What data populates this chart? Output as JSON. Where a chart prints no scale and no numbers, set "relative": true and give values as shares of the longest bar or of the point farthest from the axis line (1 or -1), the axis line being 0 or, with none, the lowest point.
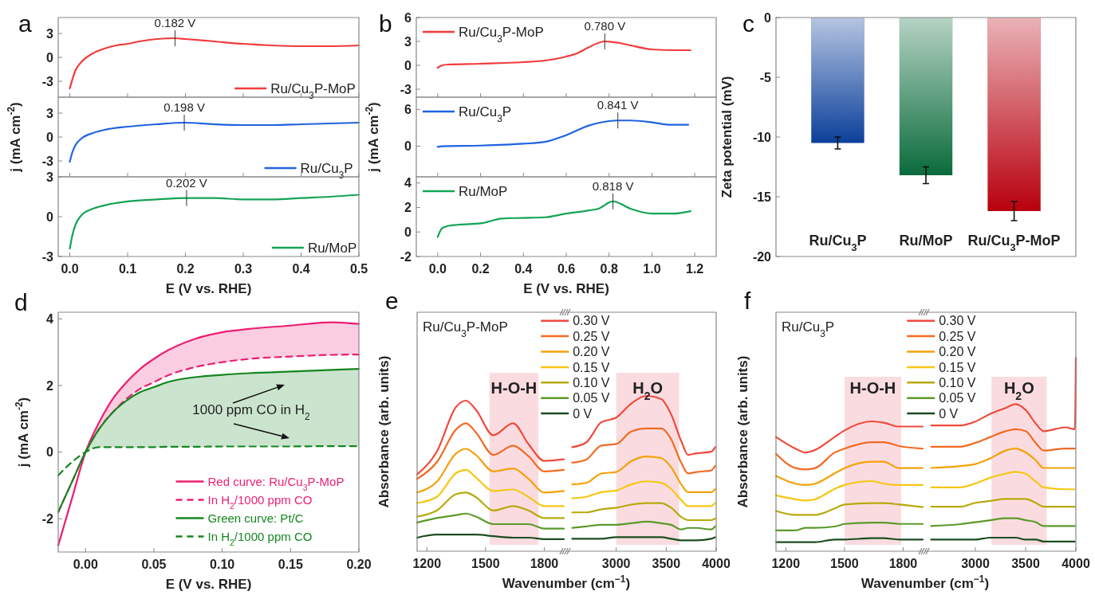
{
  "chart_data": [
    {
      "type": "line",
      "title": "a",
      "xlim": [
        -0.02,
        0.5
      ],
      "xticks": [
        0,
        0.1,
        0.2,
        0.3,
        0.4,
        0.5
      ],
      "ylim": [
        -5,
        5
      ],
      "yticks": [
        -3,
        0,
        3
      ],
      "tick_labels": "y",
      "legend": "bottom right",
      "annotations": [
        {
          "text": "0.182 V",
          "x": 0.182,
          "y": 2.4
        }
      ],
      "x": [
        0,
        0.01,
        0.02,
        0.04,
        0.06,
        0.08,
        0.1,
        0.12,
        0.15,
        0.182,
        0.2,
        0.25,
        0.3,
        0.35,
        0.4,
        0.45,
        0.5
      ],
      "series": [
        {
          "name": "Ru/Cu$_{3}$P-MoP",
          "color": "#f23b3b",
          "values": [
            -3.9,
            -1.6,
            -0.6,
            0.5,
            1.1,
            1.5,
            1.7,
            2.0,
            2.3,
            2.4,
            2.3,
            2.0,
            1.7,
            1.5,
            1.4,
            1.4,
            1.5
          ]
        }
      ]
    },
    {
      "type": "line",
      "ylabel": "j (mA cm$^{-2}$)",
      "xlim": [
        -0.02,
        0.5
      ],
      "xticks": [
        0,
        0.1,
        0.2,
        0.3,
        0.4,
        0.5
      ],
      "ylim": [
        -5,
        5
      ],
      "yticks": [
        -3,
        0,
        3
      ],
      "tick_labels": "y",
      "legend": "bottom right",
      "annotations": [
        {
          "text": "0.198 V",
          "x": 0.198,
          "y": 1.8
        }
      ],
      "x": [
        0,
        0.005,
        0.01,
        0.02,
        0.04,
        0.06,
        0.1,
        0.15,
        0.198,
        0.25,
        0.3,
        0.35,
        0.4,
        0.45,
        0.5
      ],
      "series": [
        {
          "name": "Ru/Cu$_{3}$P",
          "color": "#1f63e0",
          "values": [
            -3.1,
            -1.8,
            -1.0,
            -0.2,
            0.5,
            0.9,
            1.3,
            1.6,
            1.8,
            1.6,
            1.5,
            1.5,
            1.6,
            1.7,
            1.8
          ]
        }
      ]
    },
    {
      "type": "line",
      "xlabel": "E (V vs. RHE)",
      "xlim": [
        -0.02,
        0.5
      ],
      "xticks": [
        {
          "value": 0,
          "label": "0.0"
        },
        0.1,
        0.2,
        0.3,
        0.4,
        0.5
      ],
      "ylim": [
        -3,
        3
      ],
      "yticks": [
        -3,
        0,
        3
      ],
      "legend": "bottom right",
      "annotations": [
        {
          "text": "0.202 V",
          "x": 0.202,
          "y": 1.4
        }
      ],
      "x": [
        0,
        0.005,
        0.01,
        0.02,
        0.04,
        0.06,
        0.1,
        0.15,
        0.202,
        0.25,
        0.3,
        0.35,
        0.4,
        0.45,
        0.5
      ],
      "series": [
        {
          "name": "Ru/MoP",
          "color": "#13a454",
          "values": [
            -2.4,
            -1.3,
            -0.6,
            0.1,
            0.6,
            0.85,
            1.15,
            1.3,
            1.4,
            1.4,
            1.3,
            1.3,
            1.4,
            1.5,
            1.65
          ]
        }
      ]
    },
    {
      "type": "line",
      "title": "b",
      "xlim": [
        -0.1,
        1.3
      ],
      "xticks": [
        0,
        0.2,
        0.4,
        0.6,
        0.8,
        1,
        1.2
      ],
      "ylim": [
        -4,
        6
      ],
      "yticks": [
        -3,
        0,
        3,
        6
      ],
      "tick_labels": "y",
      "legend": "top left",
      "annotations": [
        {
          "text": "0.780 V",
          "x": 0.78,
          "y": 3.0
        }
      ],
      "x": [
        0,
        0.02,
        0.05,
        0.2,
        0.4,
        0.5,
        0.6,
        0.65,
        0.7,
        0.78,
        0.85,
        0.9,
        1.0,
        1.1,
        1.18
      ],
      "series": [
        {
          "name": "Ru/Cu$_{3}$P-MoP",
          "color": "#f23b3b",
          "values": [
            -0.3,
            0,
            0.1,
            0.2,
            0.4,
            0.6,
            1.1,
            1.5,
            2.2,
            3.0,
            2.8,
            2.5,
            2.0,
            1.9,
            1.9
          ]
        }
      ]
    },
    {
      "type": "line",
      "ylabel": "j (mA cm$^{-2}$)",
      "xlim": [
        -0.1,
        1.3
      ],
      "xticks": [
        0,
        0.2,
        0.4,
        0.6,
        0.8,
        1,
        1.2
      ],
      "ylim": [
        -5,
        8
      ],
      "yticks": [
        0,
        6
      ],
      "tick_labels": "y",
      "legend": "top left",
      "annotations": [
        {
          "text": "0.841 V",
          "x": 0.841,
          "y": 4.2
        }
      ],
      "x": [
        0,
        0.02,
        0.2,
        0.4,
        0.5,
        0.6,
        0.7,
        0.8,
        0.841,
        0.9,
        1.0,
        1.08,
        1.17
      ],
      "series": [
        {
          "name": "Ru/Cu$_{3}$P",
          "color": "#1f63e0",
          "values": [
            -0.1,
            0.0,
            0.1,
            0.4,
            0.7,
            1.8,
            3.3,
            4.1,
            4.2,
            4.2,
            3.9,
            3.5,
            3.5
          ]
        }
      ]
    },
    {
      "type": "line",
      "xlabel": "E (V vs. RHE)",
      "xlim": [
        -0.1,
        1.3
      ],
      "xticks": [
        {
          "value": 0,
          "label": "0.0"
        },
        0.2,
        0.4,
        0.6,
        0.8,
        {
          "value": 1,
          "label": "1.0"
        },
        1.2
      ],
      "ylim": [
        -2,
        4.5
      ],
      "yticks": [
        -2,
        0,
        2,
        4
      ],
      "legend": "top left",
      "annotations": [
        {
          "text": "0.818 V",
          "x": 0.818,
          "y": 2.5
        }
      ],
      "x": [
        0,
        0.02,
        0.05,
        0.1,
        0.2,
        0.3,
        0.4,
        0.5,
        0.6,
        0.7,
        0.75,
        0.818,
        0.9,
        1.0,
        1.1,
        1.18
      ],
      "series": [
        {
          "name": "Ru/MoP",
          "color": "#13a454",
          "values": [
            -0.4,
            0.3,
            0.5,
            0.6,
            0.7,
            1.1,
            1.15,
            1.2,
            1.5,
            1.75,
            1.9,
            2.5,
            1.9,
            1.5,
            1.5,
            1.7
          ]
        }
      ]
    },
    {
      "type": "bar",
      "title": "c",
      "ylabel": "Zeta potential (mV)",
      "categories": [
        "Ru/Cu$_{3}$P",
        "Ru/MoP",
        "Ru/Cu$_{3}$P-MoP"
      ],
      "values": [
        -10.5,
        -13.2,
        -16.2
      ],
      "errors": [
        0.5,
        0.7,
        0.8
      ],
      "colors": [
        "#0b3f9a",
        "#0a6b3b",
        "#b8000e"
      ],
      "ylim": [
        -20,
        0
      ],
      "yticks": [
        -20,
        -15,
        -10,
        -5,
        0
      ]
    },
    {
      "type": "line",
      "title": "d",
      "xlabel": "E (V vs. RHE)",
      "ylabel": "j (mA cm$^{-2}$)",
      "xlim": [
        -0.02,
        0.2
      ],
      "xticks": [
        {
          "value": 0,
          "label": "0.00"
        },
        0.05,
        {
          "value": 0.1,
          "label": "0.10"
        },
        0.15,
        {
          "value": 0.2,
          "label": "0.20"
        }
      ],
      "ylim": [
        -3,
        4.2
      ],
      "yticks": [
        -2,
        0,
        2,
        4
      ],
      "legend": "bottom right",
      "annotations": [
        "1000 ppm CO in H$_{2}$"
      ],
      "x": [
        -0.02,
        -0.01,
        0,
        0.01,
        0.02,
        0.03,
        0.04,
        0.05,
        0.06,
        0.08,
        0.1,
        0.12,
        0.15,
        0.18,
        0.2
      ],
      "series": [
        {
          "name": "Red curve: Ru/Cu$_{3}$P-MoP",
          "color": "#ee1d73",
          "values": [
            -2.8,
            -1.4,
            0,
            0.9,
            1.6,
            2.1,
            2.5,
            2.8,
            3.05,
            3.4,
            3.6,
            3.7,
            3.8,
            3.9,
            3.85
          ],
          "lower": [
            null,
            null,
            0,
            0.7,
            1.2,
            1.6,
            1.9,
            2.1,
            2.3,
            2.55,
            2.7,
            2.8,
            2.87,
            2.92,
            2.93
          ],
          "upper": [
            null,
            null,
            0,
            0.9,
            1.6,
            2.1,
            2.5,
            2.8,
            3.05,
            3.4,
            3.6,
            3.7,
            3.8,
            3.9,
            3.85
          ]
        },
        {
          "name": "In H$_{2}$/1000 ppm CO",
          "color": "#ee1d73",
          "line_style": "dashed",
          "values": [
            -1.8,
            -0.9,
            0,
            0.7,
            1.2,
            1.6,
            1.9,
            2.1,
            2.3,
            2.55,
            2.7,
            2.8,
            2.87,
            2.92,
            2.93
          ]
        },
        {
          "name": "Green curve: Pt/C",
          "color": "#14861f",
          "values": [
            -1.8,
            -0.9,
            0,
            0.7,
            1.2,
            1.55,
            1.8,
            1.95,
            2.1,
            2.25,
            2.32,
            2.37,
            2.42,
            2.47,
            2.5
          ],
          "lower": [
            null,
            null,
            0,
            0.15,
            0.15,
            0.15,
            0.15,
            0.15,
            0.16,
            0.16,
            0.17,
            0.17,
            0.17,
            0.18,
            0.18
          ],
          "upper": [
            null,
            null,
            0,
            0.7,
            1.2,
            1.55,
            1.8,
            1.95,
            2.1,
            2.25,
            2.32,
            2.37,
            2.42,
            2.47,
            2.5
          ]
        },
        {
          "name": "In H$_{2}$/1000 ppm CO",
          "color": "#14861f",
          "line_style": "dashed",
          "values": [
            -0.7,
            -0.3,
            0,
            0.15,
            0.15,
            0.15,
            0.15,
            0.15,
            0.16,
            0.16,
            0.17,
            0.17,
            0.17,
            0.18,
            0.18
          ]
        }
      ]
    },
    {
      "type": "line",
      "title": "e",
      "relative": true,
      "xlabel": "Wavenumber (cm$^{−1}$)",
      "ylabel": "Absorbance (arb. units)",
      "xlim": [
        1150,
        1900
      ],
      "xticks": [
        1200,
        1500,
        1800
      ],
      "legend": "top right",
      "annotations": [
        "Ru/Cu$_{3}$P-MoP"
      ],
      "bands": [
        {
          "axis": "x",
          "from": 1520,
          "to": 1770,
          "label": "H-O-H",
          "color": "#f9d3d8"
        }
      ],
      "x": [
        1150,
        1250,
        1350,
        1400,
        1450,
        1540,
        1640,
        1720,
        1800,
        1900
      ],
      "series": [
        {
          "name": "0.30 V",
          "color": "#f04a3c",
          "values": [
            0.51,
            0.66,
            0.96,
            1.0,
            0.94,
            0.77,
            0.85,
            0.71,
            0.6,
            0.61
          ]
        },
        {
          "name": "0.25 V",
          "color": "#f26a22",
          "values": [
            0.48,
            0.59,
            0.81,
            0.85,
            0.79,
            0.64,
            0.7,
            0.63,
            0.53,
            0.54
          ]
        },
        {
          "name": "0.20 V",
          "color": "#f5a10a",
          "values": [
            0.39,
            0.46,
            0.65,
            0.68,
            0.64,
            0.53,
            0.55,
            0.48,
            0.39,
            0.4
          ]
        },
        {
          "name": "0.15 V",
          "color": "#f7c614",
          "values": [
            0.32,
            0.36,
            0.52,
            0.54,
            0.49,
            0.4,
            0.41,
            0.36,
            0.3,
            0.3
          ]
        },
        {
          "name": "0.10 V",
          "color": "#b8a90e",
          "values": [
            0.23,
            0.27,
            0.38,
            0.39,
            0.36,
            0.27,
            0.3,
            0.27,
            0.22,
            0.22
          ]
        },
        {
          "name": "0.05 V",
          "color": "#5c9a2a",
          "values": [
            0.19,
            0.22,
            0.24,
            0.25,
            0.23,
            0.18,
            0.18,
            0.18,
            0.15,
            0.15
          ]
        },
        {
          "name": "0 V",
          "color": "#1c4d22",
          "values": [
            0.09,
            0.11,
            0.11,
            0.11,
            0.11,
            0.1,
            0.09,
            0.09,
            0.08,
            0.08
          ]
        }
      ]
    },
    {
      "type": "line",
      "relative": true,
      "xlim": [
        2500,
        4000
      ],
      "xticks": [
        3000,
        3500,
        4000
      ],
      "bands": [
        {
          "axis": "x",
          "from": 3000,
          "to": 3630,
          "label": "H$_{2}$O",
          "color": "#f9d3d8"
        }
      ],
      "x": [
        2560,
        2700,
        2850,
        3000,
        3150,
        3300,
        3450,
        3550,
        3650,
        3720,
        3800,
        3950,
        3990
      ],
      "series": [
        {
          "color": "#f04a3c",
          "values": [
            0.67,
            0.7,
            0.83,
            0.86,
            0.95,
            1.0,
            0.98,
            0.88,
            0.71,
            0.62,
            0.63,
            0.64,
            0.67
          ]
        },
        {
          "color": "#f26a22",
          "values": [
            0.57,
            0.59,
            0.68,
            0.69,
            0.77,
            0.79,
            0.79,
            0.72,
            0.57,
            0.5,
            0.51,
            0.52,
            0.55
          ]
        },
        {
          "color": "#f5a10a",
          "values": [
            0.43,
            0.44,
            0.5,
            0.51,
            0.58,
            0.61,
            0.6,
            0.54,
            0.43,
            0.38,
            0.38,
            0.38,
            0.4
          ]
        },
        {
          "color": "#f7c614",
          "values": [
            0.34,
            0.35,
            0.38,
            0.39,
            0.43,
            0.45,
            0.44,
            0.4,
            0.33,
            0.29,
            0.29,
            0.29,
            0.31
          ]
        },
        {
          "color": "#b8a90e",
          "values": [
            0.25,
            0.25,
            0.27,
            0.28,
            0.3,
            0.31,
            0.31,
            0.28,
            0.22,
            0.2,
            0.2,
            0.2,
            0.21
          ]
        },
        {
          "color": "#5c9a2a",
          "values": [
            0.15,
            0.16,
            0.17,
            0.17,
            0.18,
            0.19,
            0.18,
            0.17,
            0.14,
            0.15,
            0.15,
            0.14,
            0.16
          ]
        },
        {
          "color": "#1c4d22",
          "values": [
            0.08,
            0.08,
            0.08,
            0.09,
            0.09,
            0.09,
            0.09,
            0.08,
            0.07,
            0.07,
            0.07,
            0.08,
            0.09
          ]
        }
      ]
    },
    {
      "type": "line",
      "title": "f",
      "relative": true,
      "xlabel": "Wavenumber (cm$^{−1}$)",
      "ylabel": "Absorbance (arb. units)",
      "xlim": [
        1150,
        1900
      ],
      "xticks": [
        1200,
        1500,
        1800
      ],
      "legend": "top right",
      "annotations": [
        "Ru/Cu$_{3}$P"
      ],
      "bands": [
        {
          "axis": "x",
          "from": 1500,
          "to": 1790,
          "label": "H-O-H",
          "color": "#f9d3d8"
        }
      ],
      "x": [
        1150,
        1250,
        1300,
        1350,
        1450,
        1500,
        1640,
        1700,
        1780,
        1900
      ],
      "series": [
        {
          "name": "0.30 V",
          "color": "#f04a3c",
          "values": [
            0.88,
            0.79,
            0.76,
            0.78,
            0.88,
            0.93,
            1.0,
            0.99,
            0.96,
            0.96
          ]
        },
        {
          "name": "0.25 V",
          "color": "#f26a22",
          "values": [
            0.75,
            0.64,
            0.63,
            0.64,
            0.76,
            0.79,
            0.84,
            0.84,
            0.81,
            0.79
          ]
        },
        {
          "name": "0.20 V",
          "color": "#f5a10a",
          "values": [
            0.58,
            0.52,
            0.51,
            0.52,
            0.6,
            0.64,
            0.69,
            0.69,
            0.64,
            0.64
          ]
        },
        {
          "name": "0.15 V",
          "color": "#f7c614",
          "values": [
            0.43,
            0.4,
            0.39,
            0.4,
            0.48,
            0.51,
            0.54,
            0.52,
            0.51,
            0.51
          ]
        },
        {
          "name": "0.10 V",
          "color": "#b8a90e",
          "values": [
            0.31,
            0.28,
            0.28,
            0.28,
            0.33,
            0.36,
            0.37,
            0.37,
            0.36,
            0.34
          ]
        },
        {
          "name": "0.05 V",
          "color": "#5c9a2a",
          "values": [
            0.16,
            0.16,
            0.18,
            0.18,
            0.19,
            0.21,
            0.22,
            0.22,
            0.21,
            0.21
          ]
        },
        {
          "name": "0 V",
          "color": "#1c4d22",
          "values": [
            0.07,
            0.07,
            0.07,
            0.07,
            0.09,
            0.09,
            0.1,
            0.1,
            0.09,
            0.09
          ]
        }
      ]
    },
    {
      "type": "line",
      "relative": true,
      "xlim": [
        2500,
        4000
      ],
      "xticks": [
        3000,
        3500,
        4000
      ],
      "bands": [
        {
          "axis": "x",
          "from": 3160,
          "to": 3710,
          "label": "H$_{2}$O",
          "color": "#f9d3d8"
        }
      ],
      "x": [
        2560,
        2850,
        3000,
        3150,
        3300,
        3400,
        3500,
        3600,
        3680,
        3900,
        3990
      ],
      "series": [
        {
          "color": "#f04a3c",
          "x": [
            2560,
            2850,
            3000,
            3150,
            3300,
            3400,
            3500,
            3600,
            3680,
            3900,
            3990,
            4000
          ],
          "values": [
            0.65,
            0.65,
            0.67,
            0.71,
            0.74,
            0.76,
            0.73,
            0.66,
            0.62,
            0.64,
            0.63,
            1.0
          ]
        },
        {
          "color": "#f26a22",
          "values": [
            0.54,
            0.54,
            0.56,
            0.59,
            0.62,
            0.63,
            0.62,
            0.56,
            0.52,
            0.53,
            0.53
          ]
        },
        {
          "color": "#f5a10a",
          "values": [
            0.43,
            0.44,
            0.45,
            0.48,
            0.52,
            0.53,
            0.51,
            0.47,
            0.43,
            0.43,
            0.43
          ]
        },
        {
          "color": "#f7c614",
          "values": [
            0.33,
            0.33,
            0.35,
            0.38,
            0.4,
            0.41,
            0.4,
            0.36,
            0.33,
            0.32,
            0.32
          ]
        },
        {
          "color": "#b8a90e",
          "values": [
            0.23,
            0.23,
            0.25,
            0.26,
            0.27,
            0.27,
            0.27,
            0.25,
            0.23,
            0.23,
            0.23
          ]
        },
        {
          "color": "#5c9a2a",
          "values": [
            0.13,
            0.14,
            0.15,
            0.16,
            0.17,
            0.17,
            0.16,
            0.15,
            0.13,
            0.13,
            0.13
          ]
        },
        {
          "color": "#1c4d22",
          "values": [
            0.06,
            0.06,
            0.06,
            0.07,
            0.07,
            0.07,
            0.06,
            0.06,
            0.05,
            0.05,
            0.05
          ]
        }
      ]
    }
  ]
}
